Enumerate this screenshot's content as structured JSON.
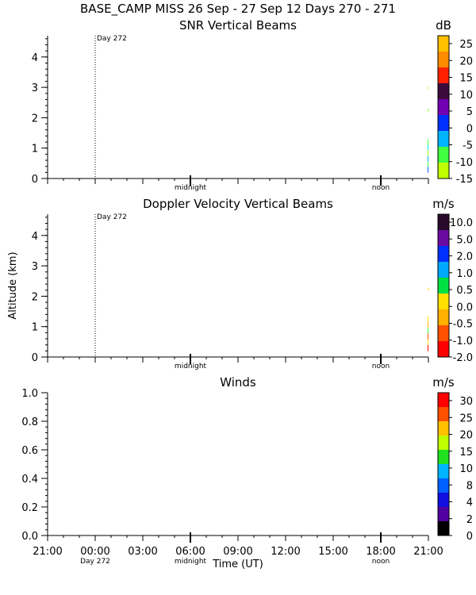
{
  "header": {
    "title": "BASE_CAMP MISS  26 Sep - 27 Sep 12 Days 270 - 271"
  },
  "chart_data": [
    {
      "type": "heatmap",
      "title": "SNR Vertical Beams",
      "ylabel": "",
      "ylim": [
        0,
        4.7
      ],
      "yticks": [
        "0",
        "1",
        "2",
        "3",
        "4"
      ],
      "yticks_values": [
        0,
        1,
        2,
        3,
        4
      ],
      "marker_label": "Day 272",
      "time_markers": [
        "midnight",
        "noon"
      ],
      "colorbar": {
        "unit": "dB",
        "labels": [
          "25",
          "20",
          "15",
          "10",
          "5",
          "0",
          "-5",
          "-10",
          "-15"
        ],
        "colors": [
          "#ffc000",
          "#ff8c00",
          "#ff2000",
          "#3c0a3c",
          "#7000b0",
          "#0030ff",
          "#00b4ff",
          "#40ff40",
          "#c0ff00"
        ]
      },
      "blobs": [
        {
          "x_start": 20.95,
          "x_end": 21.0,
          "y_start": 0.2,
          "y_end": 1.3,
          "colors": [
            "#40ff40",
            "#00ddee",
            "#c0ff00",
            "#00b4ff",
            "#40ff40",
            "#0060ff"
          ]
        },
        {
          "x_start": 20.97,
          "x_end": 21.0,
          "y_start": 2.2,
          "y_end": 2.3,
          "colors": [
            "#40ff40",
            "#c0ff00"
          ]
        },
        {
          "x_start": 20.98,
          "x_end": 21.0,
          "y_start": 2.95,
          "y_end": 3.02,
          "colors": [
            "#c0ff00"
          ]
        }
      ]
    },
    {
      "type": "heatmap",
      "title": "Doppler Velocity Vertical Beams",
      "ylabel": "Altitude (km)",
      "ylim": [
        0,
        4.7
      ],
      "yticks": [
        "0",
        "1",
        "2",
        "3",
        "4"
      ],
      "yticks_values": [
        0,
        1,
        2,
        3,
        4
      ],
      "marker_label": "Day 272",
      "time_markers": [
        "midnight",
        "noon"
      ],
      "colorbar": {
        "unit": "m/s",
        "labels": [
          "10.0",
          "5.0",
          "2.0",
          "1.0",
          "0.5",
          "0.0",
          "-0.5",
          "-1.0",
          "-2.0"
        ],
        "colors": [
          "#2a0a2a",
          "#6a0aa0",
          "#0030ff",
          "#00a8ff",
          "#00e040",
          "#ffe000",
          "#ffb000",
          "#ff5000",
          "#ff0000"
        ]
      },
      "blobs": [
        {
          "x_start": 20.95,
          "x_end": 21.0,
          "y_start": 0.2,
          "y_end": 1.35,
          "colors": [
            "#ffe000",
            "#ffb000",
            "#40ff40",
            "#ff5000",
            "#ffe000",
            "#ff0000"
          ]
        },
        {
          "x_start": 20.98,
          "x_end": 21.0,
          "y_start": 2.2,
          "y_end": 2.28,
          "colors": [
            "#ffe000"
          ]
        }
      ]
    },
    {
      "type": "scatter",
      "title": "Winds",
      "ylabel": "",
      "xlabel": "Time (UT)",
      "ylim": [
        0,
        1.0
      ],
      "yticks": [
        "0.0",
        "0.2",
        "0.4",
        "0.6",
        "0.8",
        "1.0"
      ],
      "yticks_values": [
        0,
        0.2,
        0.4,
        0.6,
        0.8,
        1.0
      ],
      "xticks": [
        "21:00",
        "00:00",
        "03:00",
        "06:00",
        "09:00",
        "12:00",
        "15:00",
        "18:00",
        "21:00"
      ],
      "xticks_values": [
        -3,
        0,
        3,
        6,
        9,
        12,
        15,
        18,
        21
      ],
      "xlim": [
        -3,
        21
      ],
      "bottom_labels": [
        "Day 272",
        "midnight",
        "noon"
      ],
      "colorbar": {
        "unit": "m/s",
        "labels": [
          "30",
          "25",
          "20",
          "15",
          "10",
          "8",
          "4",
          "2",
          "0"
        ],
        "colors": [
          "#ff0000",
          "#ff5000",
          "#ffc000",
          "#c0ff00",
          "#20e020",
          "#00b4ff",
          "#0060ff",
          "#1010e0",
          "#5000a0",
          "#000000"
        ]
      },
      "series": []
    }
  ]
}
